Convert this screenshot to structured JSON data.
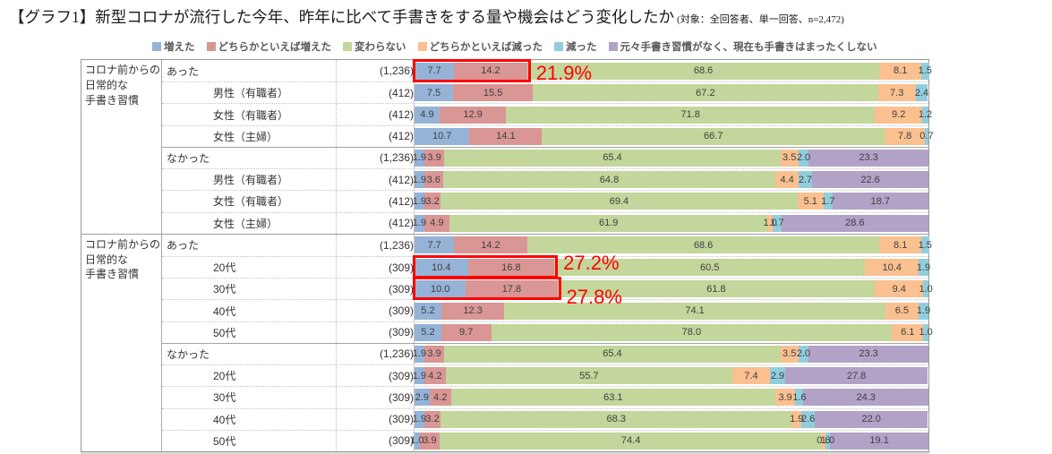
{
  "chart_data": {
    "type": "bar",
    "variant": "horizontal-stacked-100pct",
    "title": "【グラフ1】新型コロナが流行した今年、昨年に比べて手書きをする量や機会はどう変化したか",
    "subtitle": "(対象：全回答者、単一回答、n=2,472)",
    "xlim": [
      0,
      100
    ],
    "legend_position": "top",
    "series": [
      {
        "name": "増えた",
        "color": "#95B3D7"
      },
      {
        "name": "どちらかといえば増えた",
        "color": "#D99694"
      },
      {
        "name": "変わらない",
        "color": "#C3D69B"
      },
      {
        "name": "どちらかといえば減った",
        "color": "#FAC090"
      },
      {
        "name": "減った",
        "color": "#92CDDC"
      },
      {
        "name": "元々手書き習慣がなく、現在も手書きはまったくしない",
        "color": "#B2A2C7"
      }
    ],
    "groups": [
      {
        "label_lines": [
          "コロナ前からの",
          "日常的な",
          "手書き習慣"
        ],
        "rows": [
          {
            "label": "あった",
            "indent": false,
            "n": "(1,236)",
            "values": [
              7.7,
              14.2,
              68.6,
              8.1,
              1.5,
              0
            ],
            "section_start": true
          },
          {
            "label": "男性（有職者）",
            "indent": true,
            "n": "(412)",
            "values": [
              7.5,
              15.5,
              67.2,
              7.3,
              2.4,
              0
            ],
            "section_start": false
          },
          {
            "label": "女性（有職者）",
            "indent": true,
            "n": "(412)",
            "values": [
              4.9,
              12.9,
              71.8,
              9.2,
              1.2,
              0
            ],
            "section_start": false
          },
          {
            "label": "女性（主婦）",
            "indent": true,
            "n": "(412)",
            "values": [
              10.7,
              14.1,
              66.7,
              7.8,
              0.7,
              0
            ],
            "section_start": false
          },
          {
            "label": "なかった",
            "indent": false,
            "n": "(1,236)",
            "values": [
              1.9,
              3.9,
              65.4,
              3.5,
              2.0,
              23.3
            ],
            "section_start": true
          },
          {
            "label": "男性（有職者）",
            "indent": true,
            "n": "(412)",
            "values": [
              1.9,
              3.6,
              64.8,
              4.4,
              2.7,
              22.6
            ],
            "section_start": false
          },
          {
            "label": "女性（有職者）",
            "indent": true,
            "n": "(412)",
            "values": [
              1.9,
              3.2,
              69.4,
              5.1,
              1.7,
              18.7
            ],
            "section_start": false
          },
          {
            "label": "女性（主婦）",
            "indent": true,
            "n": "(412)",
            "values": [
              1.9,
              4.9,
              61.9,
              1.0,
              1.7,
              28.6
            ],
            "section_start": false
          }
        ]
      },
      {
        "label_lines": [
          "コロナ前からの",
          "日常的な",
          "手書き習慣"
        ],
        "rows": [
          {
            "label": "あった",
            "indent": false,
            "n": "(1,236)",
            "values": [
              7.7,
              14.2,
              68.6,
              8.1,
              1.5,
              0
            ],
            "section_start": true
          },
          {
            "label": "20代",
            "indent": true,
            "n": "(309)",
            "values": [
              10.4,
              16.8,
              60.5,
              10.4,
              1.9,
              0
            ],
            "section_start": false
          },
          {
            "label": "30代",
            "indent": true,
            "n": "(309)",
            "values": [
              10.0,
              17.8,
              61.8,
              9.4,
              1.0,
              0
            ],
            "section_start": false
          },
          {
            "label": "40代",
            "indent": true,
            "n": "(309)",
            "values": [
              5.2,
              12.3,
              74.1,
              6.5,
              1.9,
              0
            ],
            "section_start": false
          },
          {
            "label": "50代",
            "indent": true,
            "n": "(309)",
            "values": [
              5.2,
              9.7,
              78.0,
              6.1,
              1.0,
              0
            ],
            "section_start": false
          },
          {
            "label": "なかった",
            "indent": false,
            "n": "(1,236)",
            "values": [
              1.9,
              3.9,
              65.4,
              3.5,
              2.0,
              23.3
            ],
            "section_start": true
          },
          {
            "label": "20代",
            "indent": true,
            "n": "(309)",
            "values": [
              1.9,
              4.2,
              55.7,
              7.4,
              2.9,
              27.8
            ],
            "section_start": false
          },
          {
            "label": "30代",
            "indent": true,
            "n": "(309)",
            "values": [
              2.9,
              4.2,
              63.1,
              3.9,
              1.6,
              24.3
            ],
            "section_start": false
          },
          {
            "label": "40代",
            "indent": true,
            "n": "(309)",
            "values": [
              1.9,
              3.2,
              68.3,
              1.9,
              2.6,
              22.0
            ],
            "section_start": false
          },
          {
            "label": "50代",
            "indent": true,
            "n": "(309)",
            "values": [
              1.0,
              3.9,
              74.4,
              0.6,
              1.0,
              19.1
            ],
            "section_start": false
          }
        ]
      }
    ],
    "annotations": [
      {
        "text": "21.9%",
        "row_index": 0,
        "span_pct": 21.9,
        "color": "#FF0000"
      },
      {
        "text": "27.2%",
        "row_index": 9,
        "span_pct": 27.2,
        "color": "#FF0000"
      },
      {
        "text": "27.8%",
        "row_index": 10,
        "span_pct": 27.8,
        "color": "#FF0000"
      }
    ]
  }
}
